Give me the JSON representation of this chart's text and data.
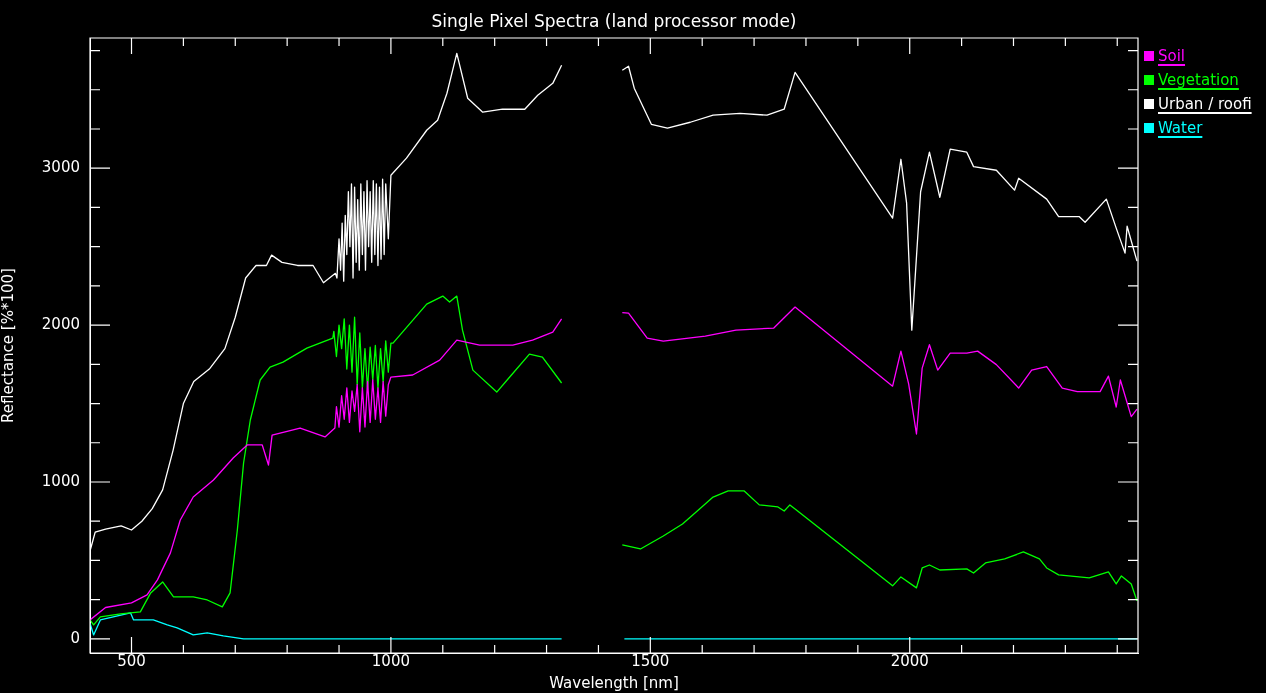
{
  "chart_data": {
    "type": "line",
    "title": "Single Pixel Spectra (land processor mode)",
    "xlabel": "Wavelength [nm]",
    "ylabel": "Reflectance [%*100]",
    "xlim": [
      420,
      2440
    ],
    "ylim": [
      -90,
      3830
    ],
    "xticks": [
      500,
      {
        "value": 600,
        "label": null
      },
      {
        "value": 700,
        "label": null
      },
      {
        "value": 800,
        "label": null
      },
      {
        "value": 900,
        "label": null
      },
      1000,
      {
        "value": 1100,
        "label": null
      },
      {
        "value": 1200,
        "label": null
      },
      {
        "value": 1300,
        "label": null
      },
      {
        "value": 1400,
        "label": null
      },
      1500,
      {
        "value": 1600,
        "label": null
      },
      {
        "value": 1700,
        "label": null
      },
      {
        "value": 1800,
        "label": null
      },
      {
        "value": 1900,
        "label": null
      },
      2000,
      {
        "value": 2100,
        "label": null
      },
      {
        "value": 2200,
        "label": null
      },
      {
        "value": 2300,
        "label": null
      },
      {
        "value": 2400,
        "label": null
      }
    ],
    "yticks": [
      0,
      {
        "value": 250,
        "label": null
      },
      {
        "value": 500,
        "label": null
      },
      {
        "value": 750,
        "label": null
      },
      1000,
      {
        "value": 1250,
        "label": null
      },
      {
        "value": 1500,
        "label": null
      },
      {
        "value": 1750,
        "label": null
      },
      2000,
      {
        "value": 2250,
        "label": null
      },
      {
        "value": 2500,
        "label": null
      },
      {
        "value": 2750,
        "label": null
      },
      3000,
      {
        "value": 3250,
        "label": null
      },
      {
        "value": 3500,
        "label": null
      },
      {
        "value": 3750,
        "label": null
      }
    ],
    "legend": "top right",
    "marker": "none",
    "line_style": "solid",
    "series": [
      {
        "name": "Soil",
        "color": "#ff00ff",
        "x": [
          420,
          450,
          500,
          530,
          550,
          575,
          594,
          619,
          658,
          696,
          723,
          752,
          764,
          771,
          825,
          873,
          892,
          895,
          900,
          905,
          910,
          915,
          920,
          925,
          930,
          935,
          940,
          945,
          950,
          955,
          960,
          965,
          970,
          975,
          980,
          985,
          990,
          995,
          1000,
          1042,
          1094,
          1127,
          1171,
          1235,
          1273,
          1312,
          1329,
          1331,
          1390,
          1444,
          1446,
          1458,
          1494,
          1525,
          1606,
          1665,
          1738,
          1779,
          1967,
          1983,
          1998,
          2013,
          2024,
          2038,
          2054,
          2078,
          2110,
          2131,
          2167,
          2210,
          2235,
          2264,
          2294,
          2323,
          2367,
          2383,
          2398,
          2406,
          2427,
          2438
        ],
        "values": [
          121,
          200,
          229,
          280,
          376,
          548,
          758,
          904,
          1013,
          1153,
          1236,
          1236,
          1108,
          1299,
          1344,
          1287,
          1344,
          1480,
          1350,
          1550,
          1400,
          1600,
          1380,
          1580,
          1450,
          1620,
          1320,
          1600,
          1350,
          1640,
          1380,
          1650,
          1400,
          1600,
          1380,
          1640,
          1420,
          1620,
          1669,
          1682,
          1777,
          1904,
          1873,
          1873,
          1904,
          1955,
          2040,
          null,
          null,
          null,
          2080,
          2076,
          1917,
          1898,
          1930,
          1968,
          1981,
          2115,
          1611,
          1834,
          1624,
          1306,
          1726,
          1875,
          1713,
          1822,
          1822,
          1834,
          1748,
          1599,
          1713,
          1736,
          1599,
          1576,
          1576,
          1675,
          1478,
          1650,
          1417,
          1465
        ]
      },
      {
        "name": "Vegetation",
        "color": "#00ff00",
        "x": [
          420,
          427,
          440,
          479,
          517,
          537,
          560,
          581,
          619,
          646,
          675,
          690,
          704,
          716,
          729,
          748,
          767,
          792,
          838,
          888,
          890,
          895,
          900,
          905,
          910,
          915,
          920,
          925,
          930,
          935,
          940,
          945,
          950,
          955,
          960,
          965,
          970,
          975,
          980,
          985,
          990,
          995,
          1000,
          1004,
          1069,
          1100,
          1113,
          1127,
          1138,
          1158,
          1204,
          1229,
          1267,
          1292,
          1329,
          1331,
          1390,
          1444,
          1446,
          1481,
          1525,
          1562,
          1621,
          1650,
          1681,
          1710,
          1746,
          1758,
          1769,
          1967,
          1983,
          2013,
          2024,
          2038,
          2058,
          2110,
          2123,
          2146,
          2183,
          2219,
          2250,
          2264,
          2287,
          2346,
          2383,
          2398,
          2408,
          2427,
          2438
        ],
        "values": [
          121,
          89,
          140,
          159,
          172,
          293,
          363,
          268,
          268,
          248,
          204,
          293,
          694,
          1121,
          1395,
          1650,
          1732,
          1764,
          1853,
          1917,
          1960,
          1800,
          2000,
          1850,
          2040,
          1720,
          2000,
          1700,
          2050,
          1620,
          1950,
          1600,
          1850,
          1590,
          1860,
          1650,
          1870,
          1600,
          1850,
          1640,
          1900,
          1700,
          1885,
          1885,
          2134,
          2185,
          2147,
          2185,
          1968,
          1713,
          1573,
          1669,
          1815,
          1796,
          1631,
          null,
          null,
          null,
          599,
          573,
          656,
          732,
          904,
          943,
          943,
          854,
          841,
          815,
          854,
          338,
          395,
          325,
          452,
          471,
          439,
          446,
          420,
          484,
          510,
          554,
          510,
          452,
          408,
          389,
          427,
          350,
          401,
          350,
          242
        ]
      },
      {
        "name": "Urban / roofi",
        "color": "#ffffff",
        "x": [
          420,
          430,
          450,
          480,
          500,
          520,
          540,
          560,
          580,
          600,
          620,
          650,
          680,
          700,
          720,
          740,
          760,
          770,
          790,
          820,
          850,
          870,
          893,
          896,
          900,
          903,
          906,
          909,
          912,
          915,
          918,
          921,
          924,
          927,
          930,
          933,
          936,
          939,
          942,
          945,
          948,
          951,
          954,
          957,
          960,
          963,
          966,
          969,
          972,
          975,
          978,
          981,
          984,
          987,
          990,
          995,
          1000,
          1030,
          1069,
          1090,
          1108,
          1127,
          1148,
          1177,
          1215,
          1258,
          1283,
          1312,
          1329,
          1331,
          1390,
          1444,
          1446,
          1458,
          1469,
          1502,
          1533,
          1577,
          1621,
          1673,
          1725,
          1758,
          1779,
          1967,
          1983,
          1994,
          2004,
          2021,
          2038,
          2058,
          2078,
          2110,
          2123,
          2167,
          2202,
          2210,
          2264,
          2287,
          2327,
          2338,
          2379,
          2398,
          2415,
          2419,
          2438
        ],
        "values": [
          560,
          680,
          700,
          720,
          694,
          750,
          830,
          950,
          1200,
          1500,
          1640,
          1720,
          1850,
          2050,
          2300,
          2380,
          2380,
          2446,
          2400,
          2380,
          2380,
          2270,
          2330,
          2300,
          2550,
          2350,
          2650,
          2280,
          2700,
          2450,
          2850,
          2500,
          2900,
          2300,
          2880,
          2400,
          2800,
          2350,
          2900,
          2450,
          2850,
          2350,
          2920,
          2500,
          2850,
          2400,
          2920,
          2450,
          2900,
          2380,
          2880,
          2420,
          2930,
          2450,
          2900,
          2550,
          2955,
          3064,
          3242,
          3306,
          3478,
          3732,
          3446,
          3357,
          3376,
          3376,
          3465,
          3541,
          3656,
          null,
          null,
          null,
          3624,
          3650,
          3510,
          3280,
          3255,
          3293,
          3338,
          3350,
          3338,
          3376,
          3611,
          2682,
          3057,
          2777,
          1968,
          2850,
          3102,
          2815,
          3121,
          3102,
          3010,
          2987,
          2860,
          2936,
          2803,
          2691,
          2691,
          2656,
          2803,
          2618,
          2459,
          2630,
          2408
        ]
      },
      {
        "name": "Water",
        "color": "#00ffff",
        "x": [
          420,
          427,
          440,
          465,
          498,
          504,
          542,
          569,
          588,
          619,
          646,
          677,
          716,
          1329,
          1331,
          1390,
          1444,
          1450,
          2438
        ],
        "values": [
          100,
          25,
          121,
          140,
          166,
          121,
          121,
          89,
          70,
          25,
          38,
          19,
          0,
          0,
          null,
          null,
          null,
          0,
          0
        ]
      }
    ]
  }
}
